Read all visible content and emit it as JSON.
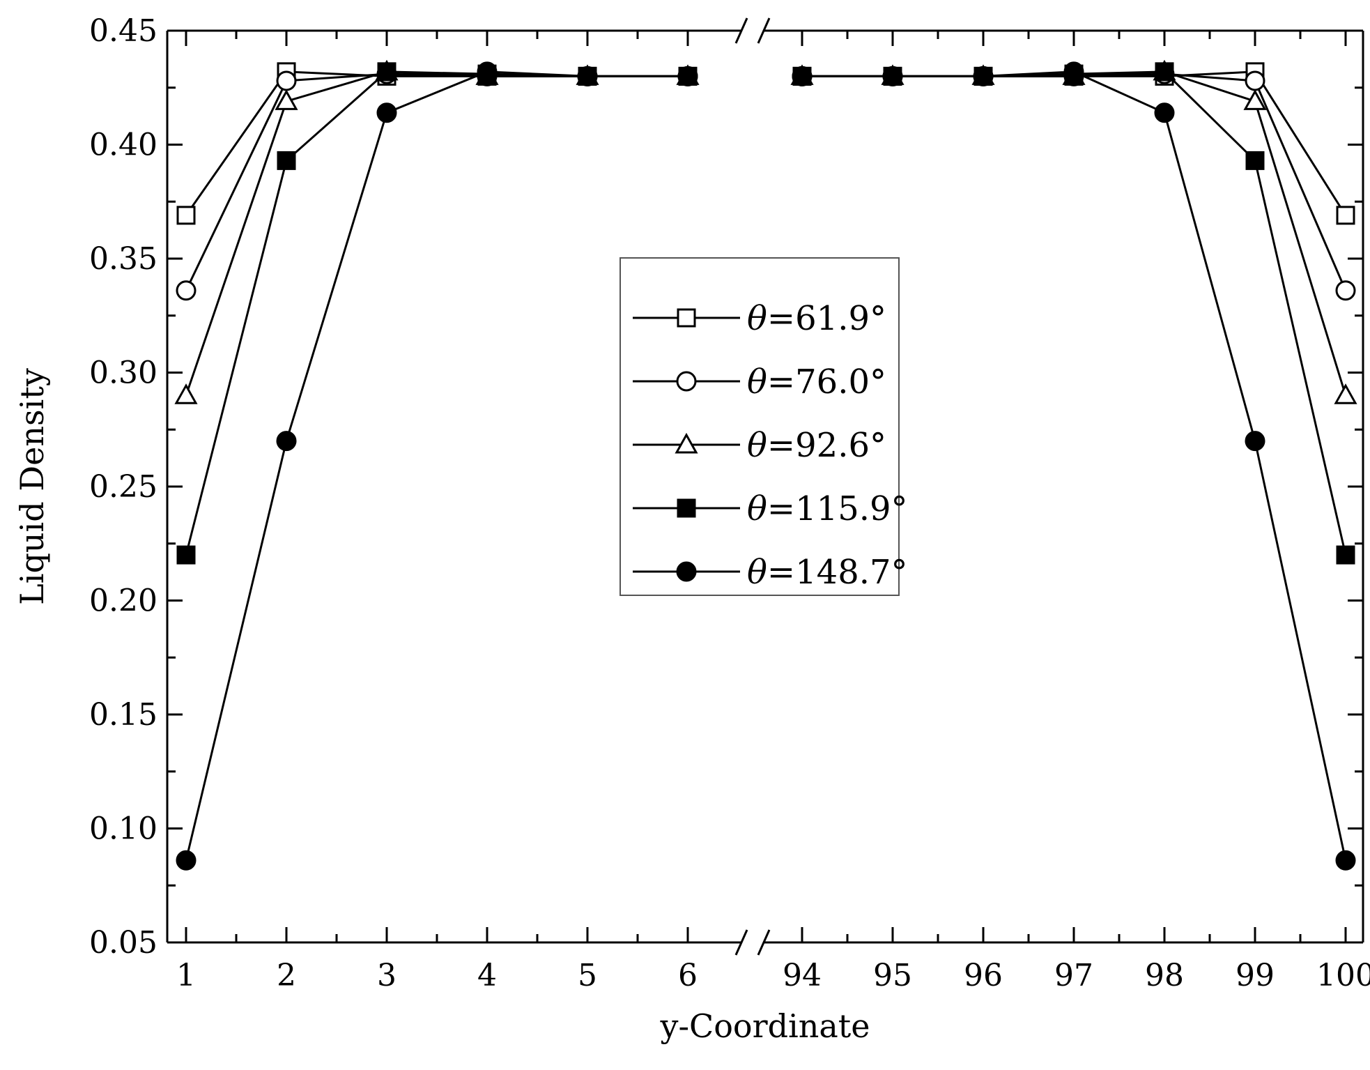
{
  "chart_data": {
    "type": "line",
    "xlabel": "y-Coordinate",
    "ylabel": "Liquid Density",
    "ylim": [
      0.05,
      0.45
    ],
    "yticks": [
      "0.05",
      "0.10",
      "0.15",
      "0.20",
      "0.25",
      "0.30",
      "0.35",
      "0.40",
      "0.45"
    ],
    "xaxis_break": true,
    "segments": [
      {
        "x": [
          1,
          2,
          3,
          4,
          5,
          6
        ],
        "ticks": [
          "1",
          "2",
          "3",
          "4",
          "5",
          "6"
        ]
      },
      {
        "x": [
          94,
          95,
          96,
          97,
          98,
          99,
          100
        ],
        "ticks": [
          "94",
          "95",
          "96",
          "97",
          "98",
          "99",
          "100"
        ]
      }
    ],
    "x": [
      1,
      2,
      3,
      4,
      5,
      6,
      94,
      95,
      96,
      97,
      98,
      99,
      100
    ],
    "legend_position": "center",
    "series": [
      {
        "name": "61.9°",
        "marker": "square-open",
        "values": [
          0.369,
          0.432,
          0.43,
          0.43,
          0.43,
          0.43,
          0.43,
          0.43,
          0.43,
          0.43,
          0.43,
          0.432,
          0.369
        ]
      },
      {
        "name": "76.0°",
        "marker": "circle-open",
        "values": [
          0.336,
          0.428,
          0.431,
          0.43,
          0.43,
          0.43,
          0.43,
          0.43,
          0.43,
          0.43,
          0.431,
          0.428,
          0.336
        ]
      },
      {
        "name": "92.6°",
        "marker": "triangle-open",
        "values": [
          0.29,
          0.419,
          0.432,
          0.43,
          0.43,
          0.43,
          0.43,
          0.43,
          0.43,
          0.43,
          0.432,
          0.419,
          0.29
        ]
      },
      {
        "name": "115.9°",
        "marker": "square-filled",
        "values": [
          0.22,
          0.393,
          0.432,
          0.431,
          0.43,
          0.43,
          0.43,
          0.43,
          0.43,
          0.431,
          0.432,
          0.393,
          0.22
        ]
      },
      {
        "name": "148.7°",
        "marker": "circle-filled",
        "values": [
          0.086,
          0.27,
          0.414,
          0.432,
          0.43,
          0.43,
          0.43,
          0.43,
          0.43,
          0.432,
          0.414,
          0.27,
          0.086
        ]
      }
    ]
  }
}
